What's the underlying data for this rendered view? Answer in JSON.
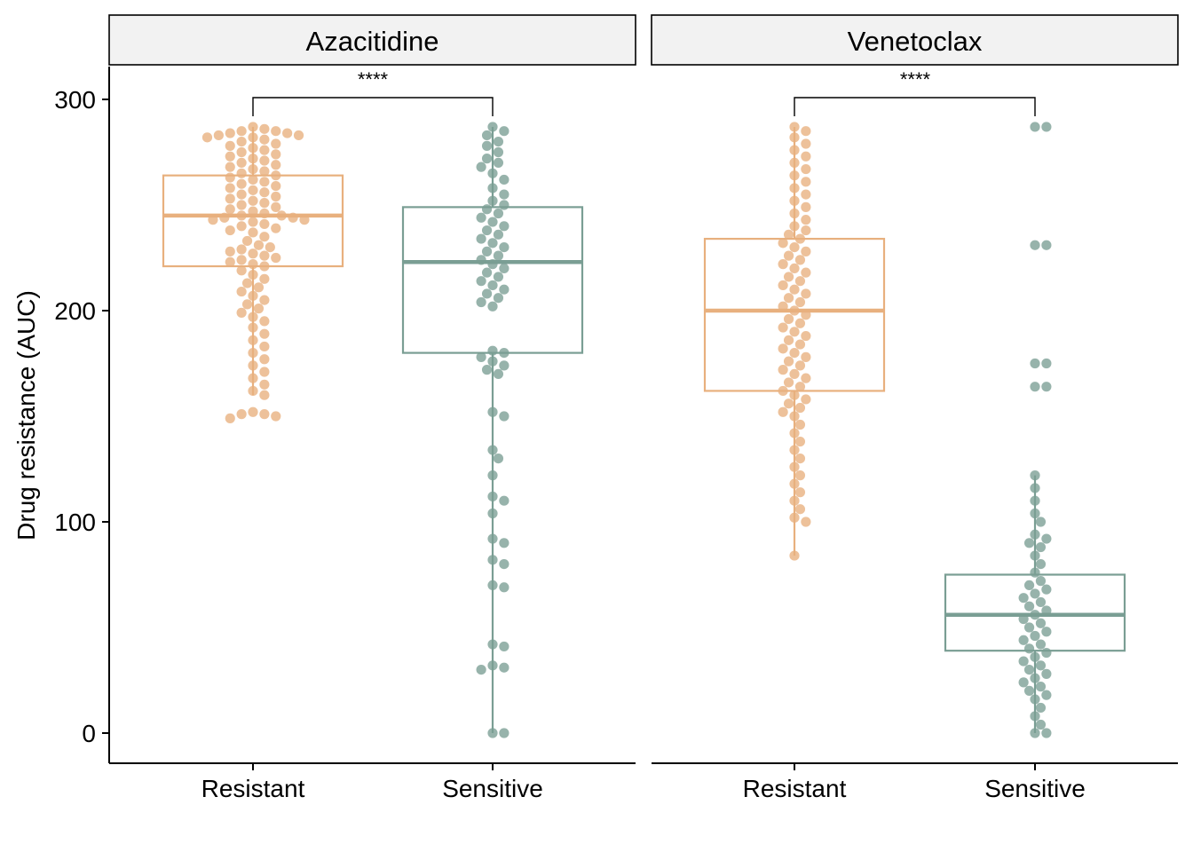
{
  "chart_data": {
    "type": "box-dot",
    "ylabel": "Drug resistance (AUC)",
    "ylim": [
      -15,
      315
    ],
    "yticks": [
      0,
      100,
      200,
      300
    ],
    "categories": [
      "Resistant",
      "Sensitive"
    ],
    "colors": {
      "Resistant": "#E8B07E",
      "Sensitive": "#7A9E94"
    },
    "grid": false,
    "legend": "none",
    "panels": [
      {
        "facet": "Azacitidine",
        "significance": "****",
        "boxes": [
          {
            "group": "Resistant",
            "q1": 221,
            "median": 245,
            "q3": 264,
            "whisker_low": 160,
            "whisker_high": 287
          },
          {
            "group": "Sensitive",
            "q1": 180,
            "median": 223,
            "q3": 249,
            "whisker_low": 0,
            "whisker_high": 287
          }
        ],
        "points": [
          {
            "group": "Resistant",
            "values": [
              287,
              286,
              285,
              285,
              284,
              284,
              283,
              283,
              282,
              282,
              281,
              280,
              279,
              278,
              277,
              276,
              275,
              274,
              273,
              272,
              271,
              270,
              269,
              268,
              267,
              266,
              265,
              264,
              263,
              262,
              261,
              260,
              259,
              258,
              257,
              256,
              255,
              254,
              253,
              252,
              251,
              250,
              249,
              248,
              247,
              246,
              245,
              245,
              244,
              244,
              243,
              243,
              242,
              241,
              240,
              239,
              238,
              237,
              235,
              233,
              231,
              230,
              229,
              228,
              227,
              226,
              225,
              224,
              223,
              222,
              221,
              219,
              217,
              215,
              213,
              211,
              209,
              207,
              205,
              203,
              201,
              199,
              197,
              195,
              192,
              189,
              186,
              183,
              180,
              177,
              174,
              171,
              168,
              165,
              162,
              160,
              152,
              151,
              151,
              150,
              149
            ]
          },
          {
            "group": "Sensitive",
            "values": [
              287,
              285,
              283,
              280,
              278,
              275,
              272,
              270,
              268,
              265,
              262,
              258,
              255,
              252,
              250,
              248,
              246,
              244,
              242,
              240,
              238,
              236,
              234,
              232,
              230,
              228,
              226,
              224,
              222,
              220,
              218,
              216,
              214,
              212,
              210,
              208,
              206,
              204,
              202,
              181,
              180,
              178,
              176,
              174,
              172,
              170,
              152,
              150,
              134,
              130,
              122,
              112,
              110,
              104,
              92,
              90,
              82,
              80,
              70,
              69,
              42,
              41,
              32,
              31,
              30,
              0,
              0
            ]
          }
        ]
      },
      {
        "facet": "Venetoclax",
        "significance": "****",
        "boxes": [
          {
            "group": "Resistant",
            "q1": 162,
            "median": 200,
            "q3": 234,
            "whisker_low": 84,
            "whisker_high": 287
          },
          {
            "group": "Sensitive",
            "q1": 39,
            "median": 56,
            "q3": 75,
            "whisker_low": 0,
            "whisker_high": 122
          }
        ],
        "points": [
          {
            "group": "Resistant",
            "values": [
              287,
              285,
              282,
              279,
              276,
              273,
              270,
              267,
              264,
              261,
              258,
              255,
              252,
              249,
              246,
              243,
              240,
              238,
              236,
              234,
              232,
              230,
              228,
              226,
              224,
              222,
              220,
              218,
              216,
              214,
              212,
              210,
              208,
              206,
              204,
              202,
              200,
              198,
              196,
              194,
              192,
              190,
              188,
              186,
              184,
              182,
              180,
              178,
              176,
              174,
              172,
              170,
              168,
              166,
              164,
              162,
              160,
              158,
              156,
              154,
              152,
              150,
              146,
              142,
              138,
              134,
              130,
              126,
              122,
              118,
              114,
              110,
              106,
              102,
              100,
              84
            ]
          },
          {
            "group": "Sensitive",
            "values": [
              287,
              287,
              231,
              231,
              175,
              175,
              164,
              164,
              122,
              116,
              110,
              104,
              100,
              94,
              92,
              90,
              88,
              84,
              80,
              76,
              72,
              70,
              68,
              66,
              64,
              62,
              60,
              58,
              56,
              54,
              52,
              50,
              48,
              46,
              44,
              42,
              40,
              38,
              36,
              34,
              32,
              30,
              28,
              26,
              24,
              22,
              20,
              18,
              16,
              12,
              8,
              4,
              0,
              0
            ]
          }
        ]
      }
    ]
  }
}
